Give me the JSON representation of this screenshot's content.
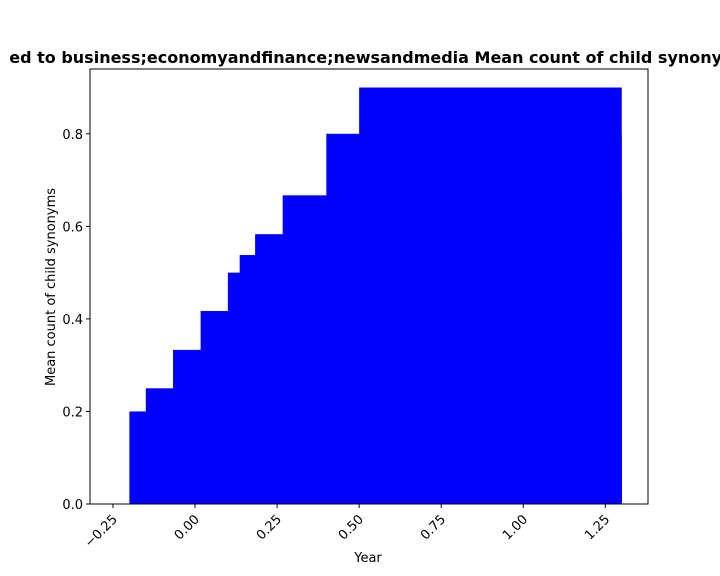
{
  "chart_data": {
    "type": "bar",
    "title": "ed to business;economyandfinance;newsandmedia Mean count of child synonym",
    "xlabel": "Year",
    "ylabel": "Mean count of child synonyms",
    "xlim": [
      -0.32,
      1.38
    ],
    "ylim": [
      0,
      0.94
    ],
    "bar_color": "#0000ff",
    "grid": false,
    "xticks": [
      -0.25,
      0.0,
      0.25,
      0.5,
      0.75,
      1.0,
      1.25
    ],
    "xtick_labels": [
      "−0.25",
      "0.00",
      "0.25",
      "0.50",
      "0.75",
      "1.00",
      "1.25"
    ],
    "yticks": [
      0.0,
      0.2,
      0.4,
      0.6,
      0.8
    ],
    "ytick_labels": [
      "0.0",
      "0.2",
      "0.4",
      "0.6",
      "0.8"
    ],
    "bars": [
      {
        "x0": -0.2,
        "x1": 1.3,
        "value": 0.2
      },
      {
        "x0": -0.15,
        "x1": 1.3,
        "value": 0.25
      },
      {
        "x0": -0.067,
        "x1": 1.3,
        "value": 0.333
      },
      {
        "x0": 0.017,
        "x1": 1.3,
        "value": 0.417
      },
      {
        "x0": 0.1,
        "x1": 1.3,
        "value": 0.5
      },
      {
        "x0": 0.136,
        "x1": 1.3,
        "value": 0.538
      },
      {
        "x0": 0.183,
        "x1": 1.3,
        "value": 0.583
      },
      {
        "x0": 0.267,
        "x1": 1.3,
        "value": 0.667
      },
      {
        "x0": 0.4,
        "x1": 1.3,
        "value": 0.8
      },
      {
        "x0": 0.5,
        "x1": 1.3,
        "value": 0.9
      }
    ]
  }
}
